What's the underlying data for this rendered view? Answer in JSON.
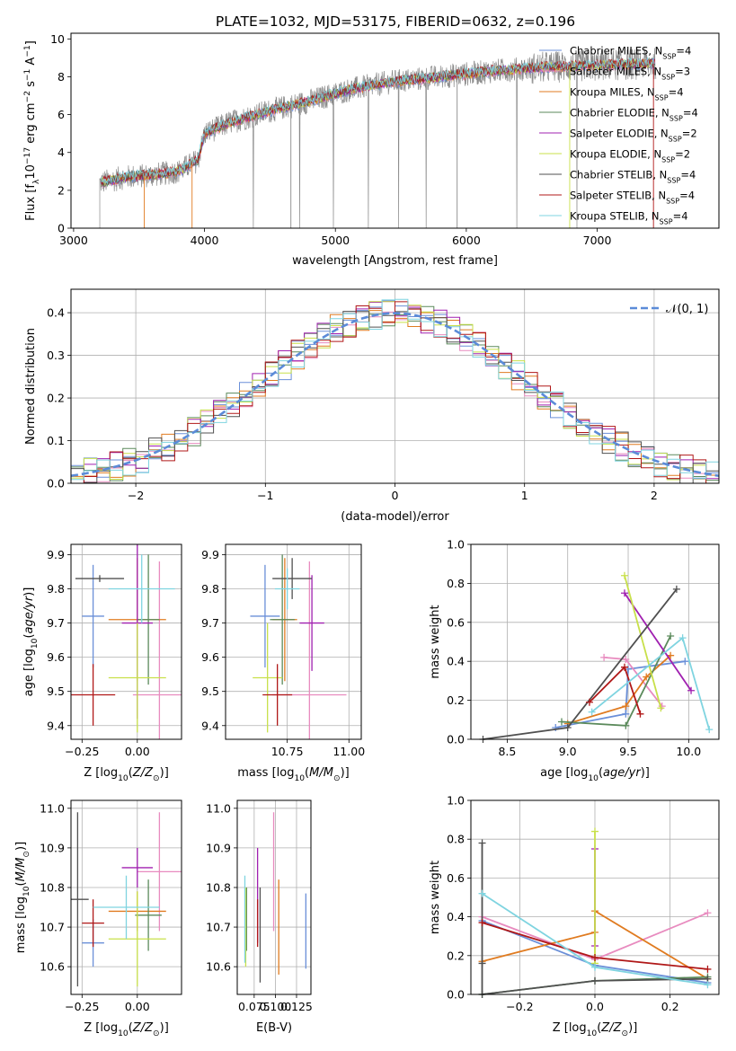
{
  "figure_title": "PLATE=1032, MJD=53175, FIBERID=0632, z=0.196",
  "chart_data": [
    {
      "id": "spectrum",
      "type": "line",
      "title": "PLATE=1032, MJD=53175, FIBERID=0632, z=0.196",
      "xlabel": "wavelength [Angstrom, rest frame]",
      "ylabel": "Flux [f_λ10^-17 erg cm^-2 s^-1 A^-1]",
      "xlim": [
        2980,
        7930
      ],
      "ylim": [
        0,
        10.3
      ],
      "xticks": [
        3000,
        4000,
        5000,
        6000,
        7000
      ],
      "yticks": [
        0,
        2,
        4,
        6,
        8,
        10
      ],
      "grid": false,
      "legend_position": "right",
      "legend": [
        {
          "label": "Chabrier MILES, N_SSP=4",
          "color": "#6a8fd8"
        },
        {
          "label": "Salpeter MILES, N_SSP=3",
          "color": "#e88bbf"
        },
        {
          "label": "Kroupa MILES, N_SSP=4",
          "color": "#e07b20"
        },
        {
          "label": "Chabrier ELODIE, N_SSP=4",
          "color": "#5b8a5b"
        },
        {
          "label": "Salpeter ELODIE, N_SSP=2",
          "color": "#a020b0"
        },
        {
          "label": "Kroupa ELODIE, N_SSP=2",
          "color": "#c8e04a"
        },
        {
          "label": "Chabrier STELIB, N_SSP=4",
          "color": "#505050"
        },
        {
          "label": "Salpeter STELIB, N_SSP=4",
          "color": "#b01818"
        },
        {
          "label": "Kroupa STELIB, N_SSP=4",
          "color": "#7fd4e0"
        }
      ],
      "model_continuum": {
        "x": [
          3200,
          3400,
          3600,
          3800,
          3950,
          4000,
          4200,
          4500,
          4800,
          5100,
          5400,
          5800,
          6200,
          6600,
          7000,
          7400
        ],
        "y": [
          2.4,
          2.7,
          2.8,
          3.0,
          3.6,
          5.0,
          5.6,
          6.2,
          6.7,
          7.3,
          7.7,
          8.0,
          8.3,
          8.5,
          8.6,
          8.7
        ]
      },
      "data_x_range": [
        3200,
        7450
      ]
    },
    {
      "id": "residuals",
      "type": "histogram",
      "xlabel": "(data-model)/error",
      "ylabel": "Normed distribution",
      "xlim": [
        -2.5,
        2.5
      ],
      "ylim": [
        0,
        0.455
      ],
      "xticks": [
        -2,
        -1,
        0,
        1,
        2
      ],
      "yticks": [
        0.0,
        0.1,
        0.2,
        0.3,
        0.4
      ],
      "grid": true,
      "bin_width": 0.1,
      "legend": [
        {
          "label": "𝒩(0, 1)",
          "color": "#5b8bd8",
          "style": "dashed"
        }
      ],
      "reference_curve": "gaussian_0_1"
    },
    {
      "id": "age_vs_Z",
      "type": "errorbar",
      "xlabel": "Z [log10(Z/Z⊙)]",
      "ylabel": "age  [log10(age/yr)]",
      "xlim": [
        -0.3,
        0.2
      ],
      "ylim": [
        9.36,
        9.93
      ],
      "xticks": [
        -0.25,
        0.0
      ],
      "yticks": [
        9.4,
        9.5,
        9.6,
        9.7,
        9.8,
        9.9
      ],
      "grid": true,
      "points": [
        {
          "color": "#6a8fd8",
          "x": -0.2,
          "y": 9.72,
          "xerr": 0.05,
          "yerr": 0.15
        },
        {
          "color": "#e88bbf",
          "x": 0.1,
          "y": 9.49,
          "xerr": 0.12,
          "yerr": 0.39
        },
        {
          "color": "#e07b20",
          "x": 0.0,
          "y": 9.71,
          "xerr": 0.13,
          "yerr": 0.18
        },
        {
          "color": "#5b8a5b",
          "x": 0.05,
          "y": 9.71,
          "xerr": 0.05,
          "yerr": 0.19
        },
        {
          "color": "#a020b0",
          "x": 0.0,
          "y": 9.7,
          "xerr": 0.07,
          "yerr": 0.28
        },
        {
          "color": "#c8e04a",
          "x": 0.0,
          "y": 9.54,
          "xerr": 0.13,
          "yerr": 0.16
        },
        {
          "color": "#505050",
          "x": -0.17,
          "y": 9.83,
          "xerr": 0.11,
          "yerr": 0.01
        },
        {
          "color": "#b01818",
          "x": -0.2,
          "y": 9.49,
          "xerr": 0.1,
          "yerr": 0.09
        },
        {
          "color": "#7fd4e0",
          "x": 0.02,
          "y": 9.8,
          "xerr": 0.15,
          "yerr": 0.1
        }
      ]
    },
    {
      "id": "age_vs_mass",
      "type": "errorbar",
      "xlabel": "mass [log10(M/M⊙)]",
      "ylabel": "",
      "xlim": [
        10.5,
        11.05
      ],
      "ylim": [
        9.36,
        9.93
      ],
      "xticks": [
        10.75,
        11.0
      ],
      "yticks": [
        9.4,
        9.5,
        9.6,
        9.7,
        9.8,
        9.9
      ],
      "grid": true,
      "points": [
        {
          "color": "#6a8fd8",
          "x": 10.66,
          "y": 9.72,
          "xerr": 0.06,
          "yerr": 0.15
        },
        {
          "color": "#e88bbf",
          "x": 10.84,
          "y": 9.49,
          "xerr": 0.15,
          "yerr": 0.39
        },
        {
          "color": "#e07b20",
          "x": 10.74,
          "y": 9.71,
          "xerr": 0.05,
          "yerr": 0.18
        },
        {
          "color": "#5b8a5b",
          "x": 10.73,
          "y": 9.71,
          "xerr": 0.05,
          "yerr": 0.19
        },
        {
          "color": "#a020b0",
          "x": 10.85,
          "y": 9.7,
          "xerr": 0.05,
          "yerr": 0.14
        },
        {
          "color": "#c8e04a",
          "x": 10.67,
          "y": 9.54,
          "xerr": 0.06,
          "yerr": 0.16
        },
        {
          "color": "#505050",
          "x": 10.77,
          "y": 9.83,
          "xerr": 0.08,
          "yerr": 0.06
        },
        {
          "color": "#b01818",
          "x": 10.71,
          "y": 9.49,
          "xerr": 0.06,
          "yerr": 0.09
        },
        {
          "color": "#7fd4e0",
          "x": 10.75,
          "y": 9.8,
          "xerr": 0.05,
          "yerr": 0.06
        }
      ]
    },
    {
      "id": "weight_vs_age",
      "type": "line",
      "xlabel": "age  [log10(age/yr)]",
      "ylabel": "mass weight",
      "xlim": [
        8.2,
        10.25
      ],
      "ylim": [
        0,
        1.0
      ],
      "xticks": [
        8.5,
        9.0,
        9.5,
        10.0
      ],
      "yticks": [
        0.0,
        0.2,
        0.4,
        0.6,
        0.8,
        1.0
      ],
      "grid": true,
      "series": [
        {
          "color": "#6a8fd8",
          "x": [
            8.9,
            9.48,
            9.5,
            9.97
          ],
          "y": [
            0.06,
            0.13,
            0.36,
            0.4
          ]
        },
        {
          "color": "#e88bbf",
          "x": [
            9.3,
            9.48,
            9.78
          ],
          "y": [
            0.42,
            0.41,
            0.17
          ]
        },
        {
          "color": "#e07b20",
          "x": [
            9.0,
            9.48,
            9.65,
            9.85
          ],
          "y": [
            0.08,
            0.17,
            0.32,
            0.43
          ]
        },
        {
          "color": "#5b8a5b",
          "x": [
            8.95,
            9.48,
            9.85
          ],
          "y": [
            0.09,
            0.07,
            0.53
          ]
        },
        {
          "color": "#a020b0",
          "x": [
            9.47,
            10.02
          ],
          "y": [
            0.75,
            0.25
          ]
        },
        {
          "color": "#c8e04a",
          "x": [
            9.47,
            9.77
          ],
          "y": [
            0.84,
            0.16
          ]
        },
        {
          "color": "#505050",
          "x": [
            8.3,
            9.0,
            9.9
          ],
          "y": [
            0.0,
            0.06,
            0.77
          ]
        },
        {
          "color": "#b01818",
          "x": [
            9.18,
            9.47,
            9.6
          ],
          "y": [
            0.19,
            0.37,
            0.13
          ]
        },
        {
          "color": "#7fd4e0",
          "x": [
            9.2,
            9.95,
            10.17
          ],
          "y": [
            0.14,
            0.52,
            0.05
          ]
        }
      ]
    },
    {
      "id": "mass_vs_Z",
      "type": "errorbar",
      "xlabel": "Z [log10(Z/Z⊙)]",
      "ylabel": "mass [log10(M/M⊙)]",
      "xlim": [
        -0.3,
        0.2
      ],
      "ylim": [
        10.53,
        11.02
      ],
      "xticks": [
        -0.25,
        0.0
      ],
      "yticks": [
        10.6,
        10.7,
        10.8,
        10.9,
        11.0
      ],
      "grid": true,
      "points": [
        {
          "color": "#6a8fd8",
          "x": -0.2,
          "y": 10.66,
          "xerr": 0.05,
          "yerr": 0.06
        },
        {
          "color": "#e88bbf",
          "x": 0.1,
          "y": 10.84,
          "xerr": 0.1,
          "yerr": 0.15
        },
        {
          "color": "#e07b20",
          "x": 0.0,
          "y": 10.74,
          "xerr": 0.13,
          "yerr": 0.05
        },
        {
          "color": "#5b8a5b",
          "x": 0.05,
          "y": 10.73,
          "xerr": 0.06,
          "yerr": 0.09
        },
        {
          "color": "#a020b0",
          "x": 0.0,
          "y": 10.85,
          "xerr": 0.07,
          "yerr": 0.05
        },
        {
          "color": "#c8e04a",
          "x": 0.0,
          "y": 10.67,
          "xerr": 0.13,
          "yerr": 0.12
        },
        {
          "color": "#505050",
          "x": -0.27,
          "y": 10.77,
          "xerr": 0.05,
          "yerr": 0.22
        },
        {
          "color": "#b01818",
          "x": -0.2,
          "y": 10.71,
          "xerr": 0.05,
          "yerr": 0.06
        },
        {
          "color": "#7fd4e0",
          "x": -0.05,
          "y": 10.75,
          "xerr": 0.15,
          "yerr": 0.08
        }
      ]
    },
    {
      "id": "mass_vs_ebv",
      "type": "errorbar",
      "xlabel": "E(B-V)",
      "ylabel": "",
      "xlim": [
        0.055,
        0.142
      ],
      "ylim": [
        10.53,
        11.02
      ],
      "xticks": [
        0.075,
        0.1,
        0.125
      ],
      "yticks": [
        10.6,
        10.7,
        10.8,
        10.9,
        11.0
      ],
      "grid": true,
      "points": [
        {
          "color": "#6a8fd8",
          "x": 0.136,
          "y": 10.69,
          "xerr": 0,
          "yerr": 0.095
        },
        {
          "color": "#e88bbf",
          "x": 0.098,
          "y": 10.84,
          "xerr": 0,
          "yerr": 0.15
        },
        {
          "color": "#e07b20",
          "x": 0.104,
          "y": 10.7,
          "xerr": 0,
          "yerr": 0.12
        },
        {
          "color": "#5b8a5b",
          "x": 0.066,
          "y": 10.72,
          "xerr": 0,
          "yerr": 0.08
        },
        {
          "color": "#a020b0",
          "x": 0.079,
          "y": 10.78,
          "xerr": 0,
          "yerr": 0.12
        },
        {
          "color": "#c8e04a",
          "x": 0.065,
          "y": 10.7,
          "xerr": 0,
          "yerr": 0.1
        },
        {
          "color": "#505050",
          "x": 0.082,
          "y": 10.68,
          "xerr": 0,
          "yerr": 0.12
        },
        {
          "color": "#b01818",
          "x": 0.079,
          "y": 10.71,
          "xerr": 0,
          "yerr": 0.06
        },
        {
          "color": "#7fd4e0",
          "x": 0.064,
          "y": 10.72,
          "xerr": 0,
          "yerr": 0.11
        }
      ]
    },
    {
      "id": "weight_vs_Z",
      "type": "line",
      "xlabel": "Z [log10(Z/Z⊙)]",
      "ylabel": "mass weight",
      "xlim": [
        -0.33,
        0.33
      ],
      "ylim": [
        0,
        1.0
      ],
      "xticks": [
        -0.2,
        0.0,
        0.2
      ],
      "yticks": [
        0.0,
        0.2,
        0.4,
        0.6,
        0.8,
        1.0
      ],
      "grid": true,
      "series": [
        {
          "color": "#6a8fd8",
          "x": [
            -0.3,
            0.0,
            0.3
          ],
          "y": [
            0.38,
            0.15,
            0.06
          ]
        },
        {
          "color": "#e88bbf",
          "x": [
            -0.3,
            0.0,
            0.3
          ],
          "y": [
            0.4,
            0.18,
            0.42
          ]
        },
        {
          "color": "#e07b20",
          "x": [
            -0.3,
            0.0,
            0.0,
            0.3
          ],
          "y": [
            0.17,
            0.32,
            0.43,
            0.08
          ]
        },
        {
          "color": "#5b8a5b",
          "x": [
            -0.3,
            0.0,
            0.3
          ],
          "y": [
            0.0,
            0.07,
            0.09
          ]
        },
        {
          "color": "#a020b0",
          "x": [
            0.0,
            0.0
          ],
          "y": [
            0.75,
            0.25
          ]
        },
        {
          "color": "#c8e04a",
          "x": [
            0.0,
            0.0
          ],
          "y": [
            0.84,
            0.16
          ]
        },
        {
          "color": "#505050",
          "x": [
            -0.3,
            -0.3,
            -0.3,
            0.0,
            0.3
          ],
          "y": [
            0.78,
            0.16,
            0.0,
            0.07,
            0.08
          ]
        },
        {
          "color": "#b01818",
          "x": [
            -0.3,
            0.0,
            0.3
          ],
          "y": [
            0.37,
            0.19,
            0.13
          ]
        },
        {
          "color": "#7fd4e0",
          "x": [
            -0.3,
            0.0,
            0.3
          ],
          "y": [
            0.52,
            0.14,
            0.05
          ]
        }
      ]
    }
  ]
}
